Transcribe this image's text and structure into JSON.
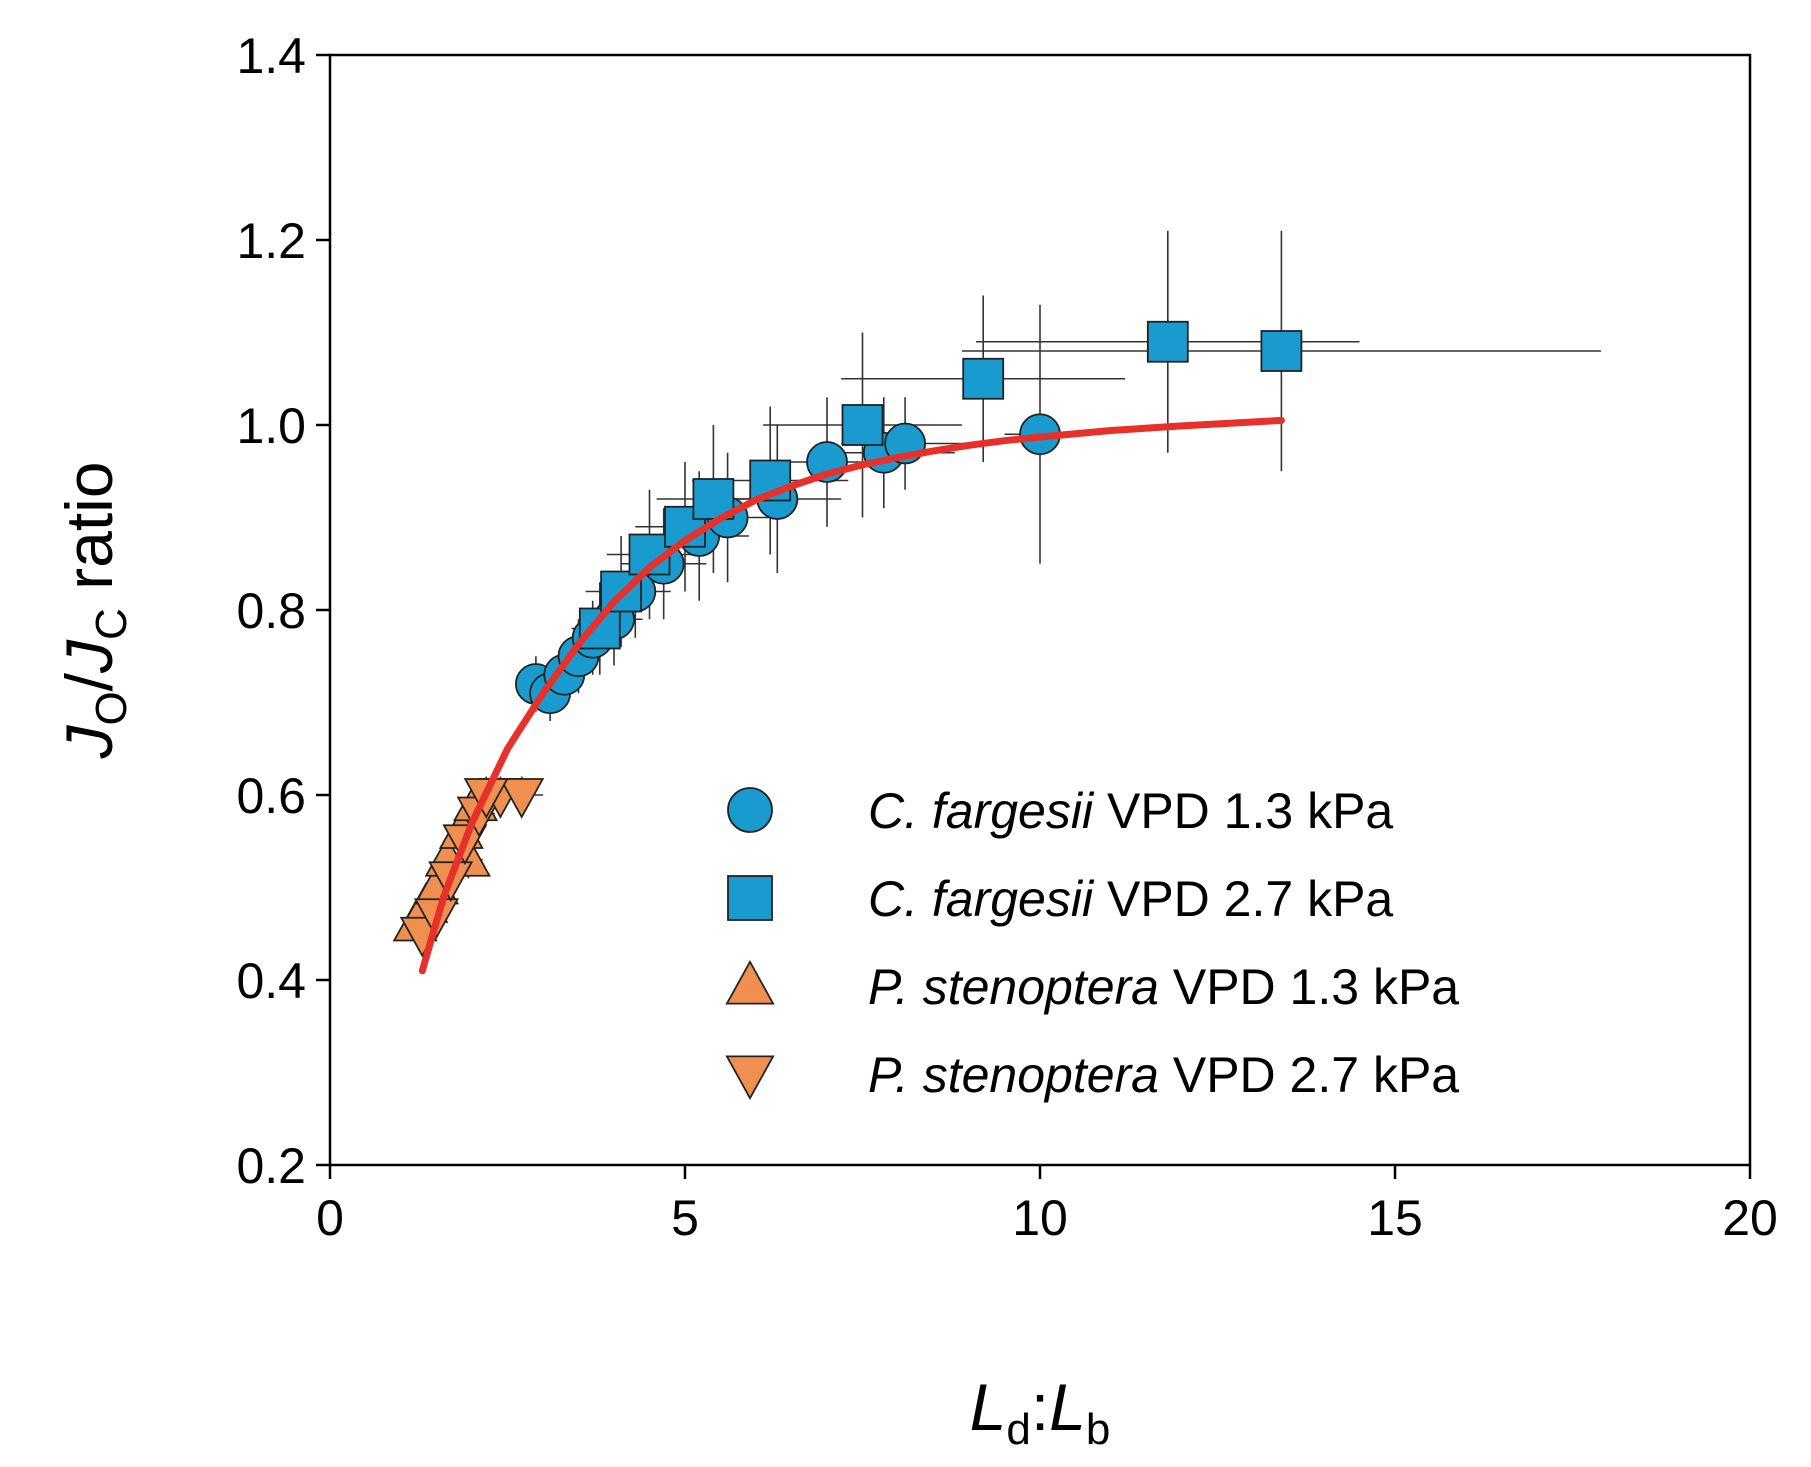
{
  "chart_data": {
    "type": "scatter",
    "title": "",
    "xlabel": {
      "main": "L",
      "sub1": "d",
      "sep": ":",
      "main2": "L",
      "sub2": "b"
    },
    "ylabel": {
      "j1": "J",
      "sub1": "O",
      "slash": "/",
      "j2": "J",
      "sub2": "C",
      "rest": " ratio"
    },
    "xlim": [
      0,
      20
    ],
    "ylim": [
      0.2,
      1.4
    ],
    "x_ticks": [
      "0",
      "5",
      "10",
      "15",
      "20"
    ],
    "x_tick_values": [
      0,
      5,
      10,
      15,
      20
    ],
    "y_ticks": [
      "0.2",
      "0.4",
      "0.6",
      "0.8",
      "1.0",
      "1.2",
      "1.4"
    ],
    "y_tick_values": [
      0.2,
      0.4,
      0.6,
      0.8,
      1.0,
      1.2,
      1.4
    ],
    "grid": false,
    "legend_position": "lower-right",
    "series": [
      {
        "name": "C. fargesii VPD 1.3 kPa",
        "legend_italic": "C. fargesii",
        "legend_rest": " VPD 1.3 kPa",
        "marker": "circle",
        "color": "#1a9bd0",
        "points": [
          {
            "x": 2.9,
            "y": 0.72,
            "xerr": 0.2,
            "yerr": 0.03
          },
          {
            "x": 3.1,
            "y": 0.71,
            "xerr": 0.2,
            "yerr": 0.03
          },
          {
            "x": 3.3,
            "y": 0.73,
            "xerr": 0.25,
            "yerr": 0.03
          },
          {
            "x": 3.5,
            "y": 0.75,
            "xerr": 0.3,
            "yerr": 0.04
          },
          {
            "x": 3.7,
            "y": 0.77,
            "xerr": 0.3,
            "yerr": 0.04
          },
          {
            "x": 4.0,
            "y": 0.79,
            "xerr": 0.4,
            "yerr": 0.05
          },
          {
            "x": 4.3,
            "y": 0.82,
            "xerr": 0.5,
            "yerr": 0.05
          },
          {
            "x": 4.7,
            "y": 0.85,
            "xerr": 0.6,
            "yerr": 0.06
          },
          {
            "x": 5.2,
            "y": 0.88,
            "xerr": 0.7,
            "yerr": 0.07
          },
          {
            "x": 5.6,
            "y": 0.9,
            "xerr": 0.8,
            "yerr": 0.07
          },
          {
            "x": 6.3,
            "y": 0.92,
            "xerr": 0.9,
            "yerr": 0.08
          },
          {
            "x": 7.0,
            "y": 0.96,
            "xerr": 1.0,
            "yerr": 0.07
          },
          {
            "x": 7.8,
            "y": 0.97,
            "xerr": 1.0,
            "yerr": 0.06
          },
          {
            "x": 8.1,
            "y": 0.98,
            "xerr": 0.9,
            "yerr": 0.05
          },
          {
            "x": 10.0,
            "y": 0.99,
            "xerr": 0.5,
            "yerr": 0.14
          }
        ]
      },
      {
        "name": "C. fargesii VPD 2.7 kPa",
        "legend_italic": "C. fargesii",
        "legend_rest": " VPD 2.7 kPa",
        "marker": "square",
        "color": "#1a9bd0",
        "points": [
          {
            "x": 3.8,
            "y": 0.78,
            "xerr": 0.4,
            "yerr": 0.05
          },
          {
            "x": 4.1,
            "y": 0.82,
            "xerr": 0.5,
            "yerr": 0.06
          },
          {
            "x": 4.5,
            "y": 0.86,
            "xerr": 0.6,
            "yerr": 0.07
          },
          {
            "x": 5.0,
            "y": 0.89,
            "xerr": 0.7,
            "yerr": 0.07
          },
          {
            "x": 5.4,
            "y": 0.92,
            "xerr": 0.8,
            "yerr": 0.08
          },
          {
            "x": 6.2,
            "y": 0.94,
            "xerr": 1.1,
            "yerr": 0.08
          },
          {
            "x": 7.5,
            "y": 1.0,
            "xerr": 1.4,
            "yerr": 0.1
          },
          {
            "x": 9.2,
            "y": 1.05,
            "xerr": 2.0,
            "yerr": 0.09
          },
          {
            "x": 11.8,
            "y": 1.09,
            "xerr": 2.7,
            "yerr": 0.12
          },
          {
            "x": 13.4,
            "y": 1.08,
            "xerr": 4.5,
            "yerr": 0.13
          }
        ]
      },
      {
        "name": "P. stenoptera VPD 1.3 kPa",
        "legend_italic": "P. stenoptera",
        "legend_rest": " VPD 1.3 kPa",
        "marker": "triangle-up",
        "color": "#f09050",
        "points": [
          {
            "x": 1.2,
            "y": 0.46,
            "xerr": 0.1,
            "yerr": 0.02
          },
          {
            "x": 1.35,
            "y": 0.48,
            "xerr": 0.12,
            "yerr": 0.02
          },
          {
            "x": 1.5,
            "y": 0.5,
            "xerr": 0.15,
            "yerr": 0.02
          },
          {
            "x": 1.65,
            "y": 0.53,
            "xerr": 0.18,
            "yerr": 0.02
          },
          {
            "x": 1.85,
            "y": 0.56,
            "xerr": 0.2,
            "yerr": 0.02
          },
          {
            "x": 2.05,
            "y": 0.59,
            "xerr": 0.2,
            "yerr": 0.02
          },
          {
            "x": 1.95,
            "y": 0.53,
            "xerr": 0.2,
            "yerr": 0.02
          }
        ]
      },
      {
        "name": "P. stenoptera VPD 2.7 kPa",
        "legend_italic": "P. stenoptera",
        "legend_rest": " VPD 2.7 kPa",
        "marker": "triangle-down",
        "color": "#f09050",
        "points": [
          {
            "x": 1.3,
            "y": 0.45,
            "xerr": 0.12,
            "yerr": 0.02
          },
          {
            "x": 1.5,
            "y": 0.47,
            "xerr": 0.15,
            "yerr": 0.02
          },
          {
            "x": 1.7,
            "y": 0.51,
            "xerr": 0.18,
            "yerr": 0.02
          },
          {
            "x": 1.9,
            "y": 0.55,
            "xerr": 0.2,
            "yerr": 0.02
          },
          {
            "x": 2.1,
            "y": 0.58,
            "xerr": 0.22,
            "yerr": 0.02
          },
          {
            "x": 2.4,
            "y": 0.6,
            "xerr": 0.25,
            "yerr": 0.02
          },
          {
            "x": 2.7,
            "y": 0.6,
            "xerr": 0.3,
            "yerr": 0.02
          },
          {
            "x": 2.2,
            "y": 0.6,
            "xerr": 0.25,
            "yerr": 0.02
          }
        ]
      }
    ],
    "fit_curve": {
      "color": "#e8302a",
      "x": [
        1.3,
        1.6,
        2.0,
        2.5,
        3.0,
        3.5,
        4.0,
        4.5,
        5.0,
        5.5,
        6.0,
        6.5,
        7.0,
        7.5,
        8.0,
        8.5,
        9.0,
        9.5,
        10.0,
        11.0,
        12.0,
        13.4
      ],
      "y": [
        0.41,
        0.49,
        0.57,
        0.65,
        0.71,
        0.763,
        0.809,
        0.846,
        0.875,
        0.899,
        0.919,
        0.934,
        0.947,
        0.957,
        0.965,
        0.972,
        0.978,
        0.983,
        0.987,
        0.994,
        0.999,
        1.005
      ]
    }
  }
}
